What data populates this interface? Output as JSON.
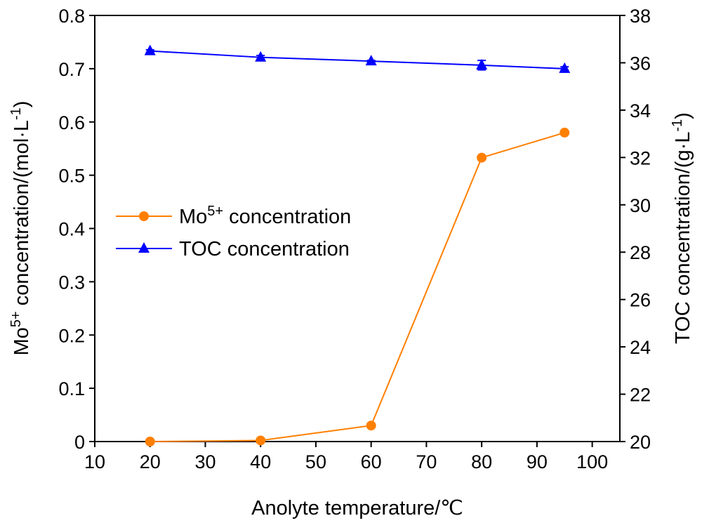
{
  "chart_data": {
    "type": "line",
    "title": "",
    "xlabel": "Anolyte temperature/℃",
    "ylabel_left": "Mo5+ concentration/(mol·L-1)",
    "ylabel_right": "TOC concentration/(g·L-1)",
    "xlim": [
      10,
      105
    ],
    "ylim_left": [
      0,
      0.8
    ],
    "ylim_right": [
      20,
      38
    ],
    "xticks": [
      "10",
      "20",
      "30",
      "40",
      "50",
      "60",
      "70",
      "80",
      "90",
      "100"
    ],
    "yticks_left": [
      "0",
      "0.1",
      "0.2",
      "0.3",
      "0.4",
      "0.5",
      "0.6",
      "0.7",
      "0.8"
    ],
    "yticks_right": [
      "20",
      "22",
      "24",
      "26",
      "28",
      "30",
      "32",
      "34",
      "36",
      "38"
    ],
    "x": [
      20,
      40,
      60,
      80,
      95
    ],
    "series": [
      {
        "name": "Mo5+ concentration",
        "axis": "left",
        "color": "#FF7F00",
        "marker": "circle",
        "values": [
          0.0,
          0.002,
          0.03,
          0.533,
          0.58
        ]
      },
      {
        "name": "TOC concentration",
        "axis": "right",
        "color": "#0000FF",
        "marker": "triangle",
        "values": [
          36.5,
          36.23,
          36.07,
          35.9,
          35.75
        ],
        "errors": [
          0.05,
          0.08,
          0.03,
          0.2,
          0.08
        ]
      }
    ],
    "legend": {
      "placement": "center-left",
      "items": [
        {
          "base": "Mo",
          "sup": "5+",
          "rest": " concentration"
        },
        {
          "base": "TOC concentration",
          "sup": "",
          "rest": ""
        }
      ]
    },
    "axis_text": {
      "x": "Anolyte temperature/℃",
      "left": {
        "a": "Mo",
        "sup": "5+",
        "b": " concentration/(mol·L",
        "sup2": "-1",
        "c": ")"
      },
      "right": {
        "a": "TOC concentration/(g·L",
        "sup": "-1",
        "b": ")"
      }
    },
    "grid": false
  }
}
